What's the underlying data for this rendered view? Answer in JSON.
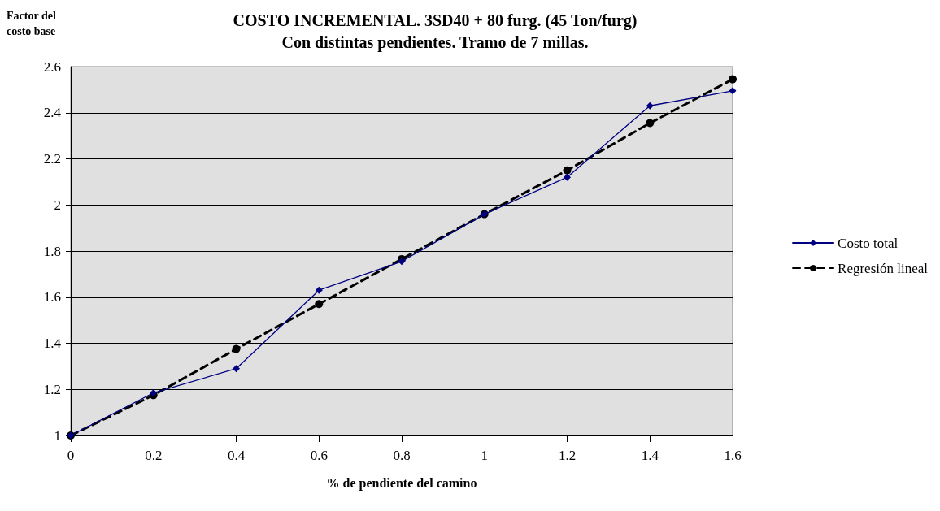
{
  "chart_data": {
    "type": "line",
    "title": "COSTO INCREMENTAL. 3SD40 + 80 furg. (45 Ton/furg)\nCon distintas pendientes. Tramo de 7 millas.",
    "xlabel": "% de pendiente del camino",
    "ylabel": "Factor del\ncosto base",
    "x": [
      0,
      0.2,
      0.4,
      0.6,
      0.8,
      1,
      1.2,
      1.4,
      1.6
    ],
    "series": [
      {
        "name": "Costo total",
        "color": "#000080",
        "marker": "diamond",
        "line_style": "solid",
        "values": [
          1.0,
          1.185,
          1.29,
          1.63,
          1.755,
          1.96,
          2.12,
          2.43,
          2.495
        ]
      },
      {
        "name": "Regresión lineal",
        "color": "#000000",
        "marker": "circle",
        "line_style": "dashed",
        "values": [
          1.0,
          1.175,
          1.375,
          1.57,
          1.765,
          1.96,
          2.15,
          2.355,
          2.545
        ]
      }
    ],
    "xlim": [
      0,
      1.6
    ],
    "xticks": [
      0,
      0.2,
      0.4,
      0.6,
      0.8,
      1,
      1.2,
      1.4,
      1.6
    ],
    "ylim": [
      1,
      2.6
    ],
    "yticks": [
      1,
      1.2,
      1.4,
      1.6,
      1.8,
      2,
      2.2,
      2.4,
      2.6
    ],
    "grid": "y",
    "legend": "right"
  }
}
